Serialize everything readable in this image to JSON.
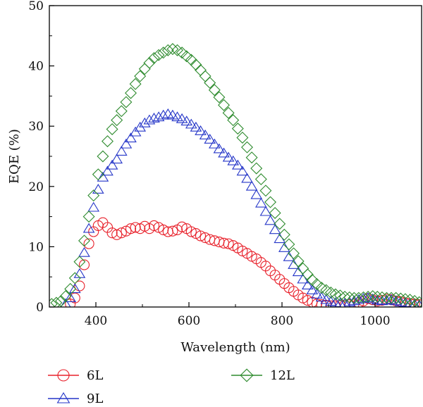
{
  "chart_data": {
    "type": "scatter",
    "title": "",
    "xlabel": "Wavelength (nm)",
    "ylabel": "EQE (%)",
    "xlim": [
      300,
      1100
    ],
    "ylim": [
      0,
      50
    ],
    "x_ticks": [
      400,
      600,
      800,
      1000
    ],
    "y_ticks": [
      0,
      10,
      20,
      30,
      40,
      50
    ],
    "grid": false,
    "legend_placement": "bottom-outside",
    "series": [
      {
        "name": "6L",
        "marker": "circle",
        "color": "#e8202a",
        "x": [
          345,
          355,
          365,
          375,
          385,
          395,
          405,
          415,
          425,
          435,
          445,
          455,
          465,
          475,
          485,
          495,
          505,
          515,
          525,
          535,
          545,
          555,
          565,
          575,
          585,
          595,
          605,
          615,
          625,
          635,
          645,
          655,
          665,
          675,
          685,
          695,
          705,
          715,
          725,
          735,
          745,
          755,
          765,
          775,
          785,
          795,
          805,
          815,
          825,
          835,
          845,
          855,
          865,
          875,
          885,
          895,
          905,
          915,
          925,
          935,
          945,
          955,
          965,
          975,
          985,
          995,
          1005,
          1015,
          1025,
          1035,
          1045,
          1055,
          1065,
          1075,
          1085,
          1095
        ],
        "y": [
          0.5,
          1.5,
          3.5,
          7.0,
          10.5,
          12.5,
          13.5,
          14.0,
          13.2,
          12.3,
          12.0,
          12.3,
          12.6,
          13.0,
          13.2,
          13.0,
          13.4,
          13.0,
          13.5,
          13.2,
          12.8,
          12.5,
          12.6,
          12.8,
          13.3,
          13.0,
          12.5,
          12.2,
          11.8,
          11.5,
          11.2,
          11.0,
          10.8,
          10.6,
          10.5,
          10.2,
          9.8,
          9.3,
          8.9,
          8.4,
          8.0,
          7.4,
          6.8,
          6.0,
          5.3,
          4.6,
          3.9,
          3.2,
          2.6,
          2.0,
          1.5,
          1.1,
          0.8,
          0.5,
          0.4,
          0.3,
          0.2,
          0.2,
          0.3,
          0.3,
          0.4,
          0.5,
          0.7,
          1.0,
          1.4,
          1.2,
          1.0,
          1.1,
          1.3,
          1.2,
          1.0,
          0.9,
          0.7,
          0.6,
          0.5,
          0.4
        ]
      },
      {
        "name": "9L",
        "marker": "triangle",
        "color": "#2435c8",
        "x": [
          335,
          345,
          355,
          365,
          375,
          385,
          395,
          405,
          415,
          425,
          435,
          445,
          455,
          465,
          475,
          485,
          495,
          505,
          515,
          525,
          535,
          545,
          555,
          565,
          575,
          585,
          595,
          605,
          615,
          625,
          635,
          645,
          655,
          665,
          675,
          685,
          695,
          705,
          715,
          725,
          735,
          745,
          755,
          765,
          775,
          785,
          795,
          805,
          815,
          825,
          835,
          845,
          855,
          865,
          875,
          885,
          895,
          905,
          915,
          925,
          935,
          945,
          955,
          965,
          975,
          985,
          995,
          1005,
          1015,
          1025,
          1035,
          1045,
          1055,
          1065,
          1075,
          1085,
          1095
        ],
        "y": [
          0.5,
          1.5,
          3.0,
          5.5,
          9.0,
          13.0,
          16.5,
          19.5,
          21.5,
          22.5,
          23.5,
          24.5,
          25.8,
          27.0,
          28.0,
          29.0,
          29.8,
          30.5,
          31.0,
          31.3,
          31.5,
          31.8,
          32.0,
          31.8,
          31.5,
          31.2,
          30.8,
          30.3,
          29.8,
          29.2,
          28.5,
          27.8,
          27.0,
          26.2,
          25.5,
          24.8,
          24.2,
          23.5,
          22.5,
          21.3,
          20.0,
          18.6,
          17.2,
          15.8,
          14.3,
          12.8,
          11.3,
          9.8,
          8.3,
          7.0,
          5.8,
          4.6,
          3.6,
          2.8,
          2.1,
          1.6,
          1.2,
          0.9,
          0.7,
          0.6,
          0.6,
          0.8,
          1.0,
          1.2,
          1.4,
          1.5,
          1.3,
          1.1,
          1.0,
          1.1,
          1.2,
          1.0,
          0.8,
          0.7,
          0.5,
          0.4,
          0.3
        ]
      },
      {
        "name": "12L",
        "marker": "diamond",
        "color": "#2e8b2e",
        "x": [
          305,
          315,
          325,
          335,
          345,
          355,
          365,
          375,
          385,
          395,
          405,
          415,
          425,
          435,
          445,
          455,
          465,
          475,
          485,
          495,
          505,
          515,
          525,
          535,
          545,
          555,
          565,
          575,
          585,
          595,
          605,
          615,
          625,
          635,
          645,
          655,
          665,
          675,
          685,
          695,
          705,
          715,
          725,
          735,
          745,
          755,
          765,
          775,
          785,
          795,
          805,
          815,
          825,
          835,
          845,
          855,
          865,
          875,
          885,
          895,
          905,
          915,
          925,
          935,
          945,
          955,
          965,
          975,
          985,
          995,
          1005,
          1015,
          1025,
          1035,
          1045,
          1055,
          1065,
          1075,
          1085,
          1095
        ],
        "y": [
          0.5,
          0.7,
          1.0,
          1.8,
          3.0,
          4.8,
          7.5,
          11.0,
          15.0,
          18.5,
          22.0,
          25.0,
          27.5,
          29.5,
          31.0,
          32.5,
          34.0,
          35.5,
          37.0,
          38.3,
          39.5,
          40.5,
          41.3,
          41.8,
          42.2,
          42.6,
          42.8,
          42.6,
          42.2,
          41.6,
          41.0,
          40.2,
          39.3,
          38.3,
          37.2,
          36.0,
          34.8,
          33.5,
          32.2,
          31.0,
          29.6,
          28.1,
          26.5,
          24.8,
          23.0,
          21.2,
          19.3,
          17.4,
          15.6,
          13.8,
          12.0,
          10.4,
          8.9,
          7.6,
          6.4,
          5.4,
          4.5,
          3.8,
          3.2,
          2.8,
          2.4,
          2.1,
          1.9,
          1.7,
          1.6,
          1.5,
          1.5,
          1.6,
          1.7,
          1.8,
          1.7,
          1.6,
          1.5,
          1.5,
          1.5,
          1.4,
          1.3,
          1.2,
          1.0,
          0.8
        ]
      }
    ]
  }
}
